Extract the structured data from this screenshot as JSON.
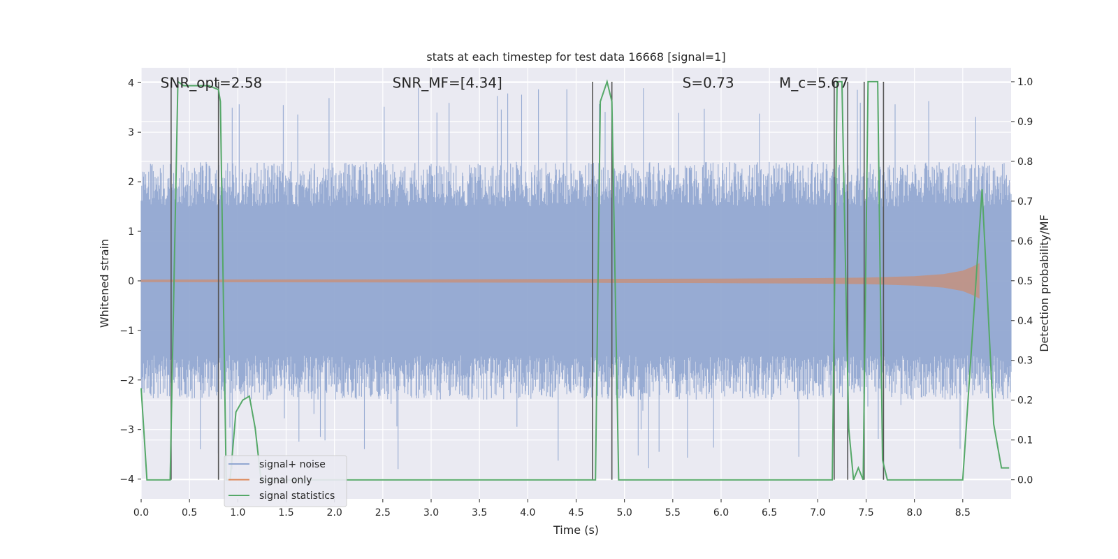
{
  "chart_data": {
    "type": "line",
    "title": "stats at each timestep for test data 16668 [signal=1]",
    "xlabel": "Time (s)",
    "ylabel": "Whitened strain",
    "y2label": "Detection probability/MF",
    "xlim": [
      0.0,
      9.0
    ],
    "ylim": [
      -4.4,
      4.3
    ],
    "y2lim": [
      -0.048,
      1.035
    ],
    "x_ticks": [
      0.0,
      0.5,
      1.0,
      1.5,
      2.0,
      2.5,
      3.0,
      3.5,
      4.0,
      4.5,
      5.0,
      5.5,
      6.0,
      6.5,
      7.0,
      7.5,
      8.0,
      8.5
    ],
    "x_tick_labels": [
      "0.0",
      "0.5",
      "1.0",
      "1.5",
      "2.0",
      "2.5",
      "3.0",
      "3.5",
      "4.0",
      "4.5",
      "5.0",
      "5.5",
      "6.0",
      "6.5",
      "7.0",
      "7.5",
      "8.0",
      "8.5"
    ],
    "y_ticks": [
      -4,
      -3,
      -2,
      -1,
      0,
      1,
      2,
      3,
      4
    ],
    "y_tick_labels": [
      "−4",
      "−3",
      "−2",
      "−1",
      "0",
      "1",
      "2",
      "3",
      "4"
    ],
    "y2_ticks": [
      0.0,
      0.1,
      0.2,
      0.3,
      0.4,
      0.5,
      0.6,
      0.7,
      0.8,
      0.9,
      1.0
    ],
    "y2_tick_labels": [
      "0.0",
      "0.1",
      "0.2",
      "0.3",
      "0.4",
      "0.5",
      "0.6",
      "0.7",
      "0.8",
      "0.9",
      "1.0"
    ],
    "grid": true,
    "legend_placement": "lower-left",
    "annotations": [
      {
        "text": "SNR_opt=2.58",
        "x": 0.2,
        "y": 4.0
      },
      {
        "text": "SNR_MF=[4.34]",
        "x": 2.6,
        "y": 4.0
      },
      {
        "text": "S=0.73",
        "x": 5.6,
        "y": 4.0
      },
      {
        "text": "M_c=5.67",
        "x": 6.6,
        "y": 4.0
      }
    ],
    "series": [
      {
        "name": "signal+ noise",
        "color": "#92a8d1",
        "noise_envelope": {
          "x_start": 0.0,
          "x_end": 9.0,
          "typical_abs": [
            1.5,
            2.4
          ],
          "peak_max": 3.9,
          "peak_min": -4.0
        }
      },
      {
        "name": "signal only",
        "color": "#dd8452",
        "chirp_envelope": {
          "x": [
            0.0,
            2.0,
            4.0,
            6.0,
            7.0,
            7.5,
            8.0,
            8.3,
            8.5,
            8.6,
            8.67
          ],
          "amp": [
            0.02,
            0.025,
            0.03,
            0.04,
            0.05,
            0.06,
            0.09,
            0.13,
            0.2,
            0.28,
            0.35
          ]
        }
      },
      {
        "name": "signal statistics",
        "color": "#55a868",
        "x": [
          0.0,
          0.06,
          0.1,
          0.2,
          0.3,
          0.38,
          0.44,
          0.55,
          0.7,
          0.8,
          0.82,
          0.88,
          0.92,
          0.98,
          1.05,
          1.12,
          1.18,
          1.24,
          1.32,
          1.4,
          4.7,
          4.75,
          4.82,
          4.87,
          4.94,
          7.15,
          7.2,
          7.25,
          7.32,
          7.37,
          7.42,
          7.47,
          7.52,
          7.57,
          7.62,
          7.67,
          7.72,
          7.78,
          7.84,
          8.0,
          8.3,
          8.5,
          8.7,
          8.82,
          8.9,
          8.98
        ],
        "y": [
          0.23,
          0.0,
          0.0,
          0.0,
          0.0,
          1.0,
          0.99,
          0.99,
          0.99,
          0.98,
          0.95,
          0.0,
          0.0,
          0.17,
          0.2,
          0.21,
          0.13,
          0.0,
          0.0,
          0.0,
          0.0,
          0.95,
          1.0,
          0.95,
          0.0,
          0.0,
          1.0,
          1.0,
          0.13,
          0.0,
          0.03,
          0.0,
          1.0,
          1.0,
          1.0,
          0.05,
          0.0,
          0.0,
          0.0,
          0.0,
          0.0,
          0.0,
          0.73,
          0.14,
          0.03,
          0.03
        ]
      }
    ],
    "vertical_markers": {
      "color": "#555555",
      "x": [
        0.31,
        0.8,
        4.67,
        4.87,
        7.17,
        7.31,
        7.48,
        7.68
      ]
    }
  }
}
